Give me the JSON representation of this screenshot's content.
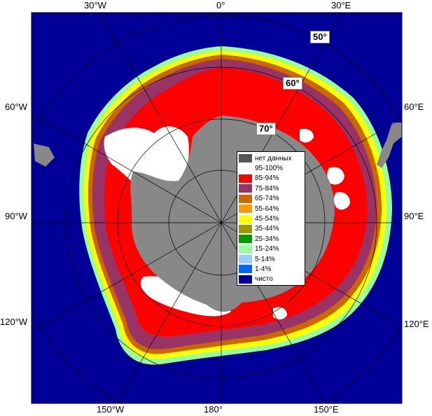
{
  "lon_labels": [
    {
      "id": "30w-top",
      "text": "30°W"
    },
    {
      "id": "0-top",
      "text": "0°"
    },
    {
      "id": "30e-top",
      "text": "30°E"
    },
    {
      "id": "60w",
      "text": "60°W"
    },
    {
      "id": "60e",
      "text": "60°E"
    },
    {
      "id": "90w",
      "text": "90°W"
    },
    {
      "id": "90e",
      "text": "90°E"
    },
    {
      "id": "120w",
      "text": "120°W"
    },
    {
      "id": "120e",
      "text": "120°E"
    },
    {
      "id": "150w",
      "text": "150°W"
    },
    {
      "id": "180",
      "text": "180°"
    },
    {
      "id": "150e",
      "text": "150°E"
    }
  ],
  "lat_labels": [
    {
      "id": "50",
      "text": "50°"
    },
    {
      "id": "60",
      "text": "60°"
    },
    {
      "id": "70",
      "text": "70°"
    }
  ],
  "legend": [
    {
      "label": "нет данных",
      "color": "#555555"
    },
    {
      "label": "95-100%",
      "color": "#ffffff"
    },
    {
      "label": "85-94%",
      "color": "#ff0000"
    },
    {
      "label": "75-84%",
      "color": "#993366"
    },
    {
      "label": "65-74%",
      "color": "#cc6600"
    },
    {
      "label": "55-64%",
      "color": "#ff9900"
    },
    {
      "label": "45-54%",
      "color": "#ffff00"
    },
    {
      "label": "35-44%",
      "color": "#999900"
    },
    {
      "label": "25-34%",
      "color": "#009900"
    },
    {
      "label": "15-24%",
      "color": "#99ff99"
    },
    {
      "label": "5-14%",
      "color": "#99ccff"
    },
    {
      "label": "1-4%",
      "color": "#0066ff"
    },
    {
      "label": "чисто",
      "color": "#000099"
    }
  ],
  "colors": {
    "ocean": "#000099",
    "land": "#888888",
    "no_data": "#555555"
  }
}
